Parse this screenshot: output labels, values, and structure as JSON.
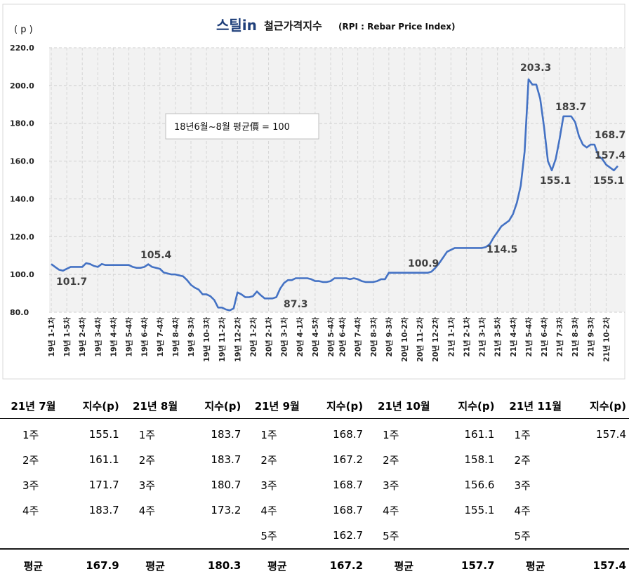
{
  "chart_data": {
    "type": "line",
    "title_logo": "스틸in",
    "title": "철근가격지수",
    "subtitle": "(RPI : Rebar Price Index)",
    "unit_label": "( p )",
    "ylim": [
      80.0,
      220.0
    ],
    "y_ticks": [
      "80.0",
      "100.0",
      "120.0",
      "140.0",
      "160.0",
      "180.0",
      "200.0",
      "220.0"
    ],
    "grid": true,
    "line_color": "#4472C4",
    "note": "18년6월~8월 평균價 = 100",
    "x_tick_labels": [
      "19년 1-1차",
      "19년 1-5차",
      "19년 2-4차",
      "19년 3-4차",
      "19년 4-4차",
      "19년 5-4차",
      "19년 6-4차",
      "19년 7-4차",
      "19년 8-4차",
      "19년 9-3차",
      "19년 10-3차",
      "19년 11-2차",
      "19년 12-2차",
      "20년 1-2차",
      "20년 2-1차",
      "20년 3-1차",
      "20년 4-1차",
      "20년 4-5차",
      "20년 5-4차",
      "20년 6-4차",
      "20년 7-4차",
      "20년 8-3차",
      "20년 9-3차",
      "20년 10-2차",
      "20년 11-2차",
      "20년 12-2차",
      "21년 1-1차",
      "21년 2-1차",
      "21년 3-1차",
      "21년 3-5차",
      "21년 4-4차",
      "21년 5-4차",
      "21년 6-4차",
      "21년 7-3차",
      "21년 8-3차",
      "21년 9-3차",
      "21년 10-2차"
    ],
    "values": [
      105.5,
      104.0,
      102.5,
      102.0,
      103.0,
      104.0,
      104.0,
      104.0,
      104.0,
      106.0,
      105.5,
      104.5,
      104.0,
      105.5,
      105.0,
      105.0,
      105.0,
      105.0,
      105.0,
      105.0,
      105.0,
      104.0,
      103.5,
      103.5,
      104.0,
      105.4,
      104.0,
      103.5,
      103.0,
      101.0,
      100.5,
      100.0,
      100.0,
      99.5,
      99.0,
      97.0,
      94.5,
      93.0,
      92.0,
      89.5,
      89.5,
      88.5,
      86.5,
      82.5,
      82.5,
      81.5,
      81.0,
      82.0,
      90.5,
      89.5,
      88.0,
      88.0,
      88.5,
      91.0,
      89.0,
      87.3,
      87.3,
      87.3,
      88.0,
      92.5,
      95.5,
      97.0,
      97.0,
      98.0,
      98.0,
      98.0,
      98.0,
      97.5,
      96.5,
      96.5,
      96.0,
      96.0,
      96.5,
      98.0,
      98.0,
      98.0,
      98.0,
      97.5,
      98.0,
      97.5,
      96.5,
      96.0,
      96.0,
      96.0,
      96.5,
      97.5,
      97.5,
      100.9,
      100.9,
      100.9,
      100.9,
      100.9,
      100.9,
      100.9,
      100.9,
      100.9,
      100.9,
      100.9,
      101.5,
      103.5,
      106.0,
      109.0,
      112.0,
      113.0,
      114.0,
      114.0,
      114.0,
      114.0,
      114.0,
      114.0,
      114.0,
      114.0,
      114.5,
      116.0,
      119.5,
      122.5,
      125.5,
      127.0,
      128.5,
      132.0,
      138.0,
      147.0,
      165.0,
      203.3,
      200.5,
      200.5,
      193.0,
      178.0,
      160.0,
      155.1,
      161.1,
      171.7,
      183.7,
      183.7,
      183.7,
      180.7,
      173.2,
      168.7,
      167.2,
      168.7,
      168.7,
      162.7,
      161.1,
      158.1,
      156.6,
      155.1,
      157.4
    ],
    "annotations": [
      {
        "text": "101.7"
      },
      {
        "text": "105.4"
      },
      {
        "text": "87.3"
      },
      {
        "text": "100.9"
      },
      {
        "text": "114.5"
      },
      {
        "text": "203.3"
      },
      {
        "text": "155.1"
      },
      {
        "text": "183.7"
      },
      {
        "text": "168.7"
      },
      {
        "text": "157.4"
      },
      {
        "text": "155.1"
      }
    ]
  },
  "table": {
    "headers": [
      "21년 7월",
      "지수(p)",
      "21년 8월",
      "지수(p)",
      "21년 9월",
      "지수(p)",
      "21년 10월",
      "지수(p)",
      "21년 11월",
      "지수(p)"
    ],
    "rows": [
      [
        "1주",
        "155.1",
        "1주",
        "183.7",
        "1주",
        "168.7",
        "1주",
        "161.1",
        "1주",
        "157.4"
      ],
      [
        "2주",
        "161.1",
        "2주",
        "183.7",
        "2주",
        "167.2",
        "2주",
        "158.1",
        "2주",
        ""
      ],
      [
        "3주",
        "171.7",
        "3주",
        "180.7",
        "3주",
        "168.7",
        "3주",
        "156.6",
        "3주",
        ""
      ],
      [
        "4주",
        "183.7",
        "4주",
        "173.2",
        "4주",
        "168.7",
        "4주",
        "155.1",
        "4주",
        ""
      ],
      [
        "",
        "",
        "",
        "",
        "5주",
        "162.7",
        "5주",
        "",
        "5주",
        ""
      ]
    ],
    "average": [
      "평균",
      "167.9",
      "평균",
      "180.3",
      "평균",
      "167.2",
      "평균",
      "157.7",
      "평균",
      "157.4"
    ]
  }
}
